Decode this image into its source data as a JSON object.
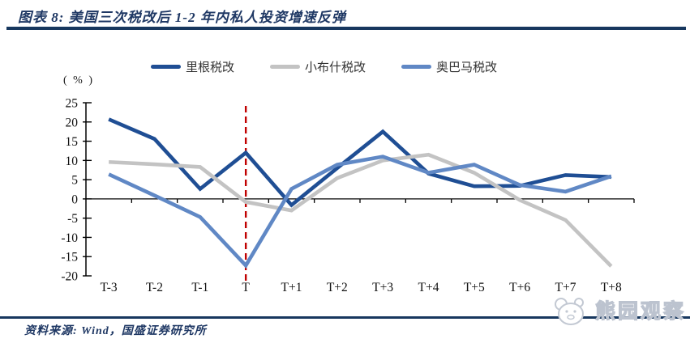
{
  "header": {
    "title": "图表 8:  美国三次税改后 1-2 年内私人投资增速反弹"
  },
  "chart_data": {
    "type": "line",
    "title": "美国三次税改后 1-2 年内私人投资增速反弹",
    "unit_label": "( % )",
    "categories": [
      "T-3",
      "T-2",
      "T-1",
      "T",
      "T+1",
      "T+2",
      "T+3",
      "T+4",
      "T+5",
      "T+6",
      "T+7",
      "T+8"
    ],
    "series": [
      {
        "name": "里根税改",
        "color": "#1f4e94",
        "values": [
          20.7,
          15.6,
          2.6,
          12.0,
          -1.6,
          8.0,
          17.5,
          6.6,
          3.3,
          3.4,
          6.2,
          5.7
        ]
      },
      {
        "name": "小布什税改",
        "color": "#c3c3c3",
        "values": [
          9.6,
          9.0,
          8.3,
          -0.8,
          -3.0,
          5.4,
          10.0,
          11.5,
          6.8,
          -0.3,
          -5.5,
          -17.5
        ]
      },
      {
        "name": "奥巴马税改",
        "color": "#6088c5",
        "values": [
          6.4,
          0.9,
          -4.7,
          -17.3,
          2.6,
          8.9,
          11.0,
          6.8,
          8.9,
          3.6,
          1.9,
          5.9
        ]
      }
    ],
    "ylim": [
      -20,
      25
    ],
    "ytick_step": 5,
    "grid": false,
    "legend_position": "top",
    "reference_line": {
      "category": "T",
      "color": "#c00000",
      "style": "dashed"
    }
  },
  "footer": {
    "source": "资料来源: Wind，国盛证券研究所",
    "watermark": "熊园观察"
  },
  "colors": {
    "rule": "#17375e",
    "title_text": "#1f3864",
    "axis": "#000000",
    "reference": "#c00000"
  }
}
